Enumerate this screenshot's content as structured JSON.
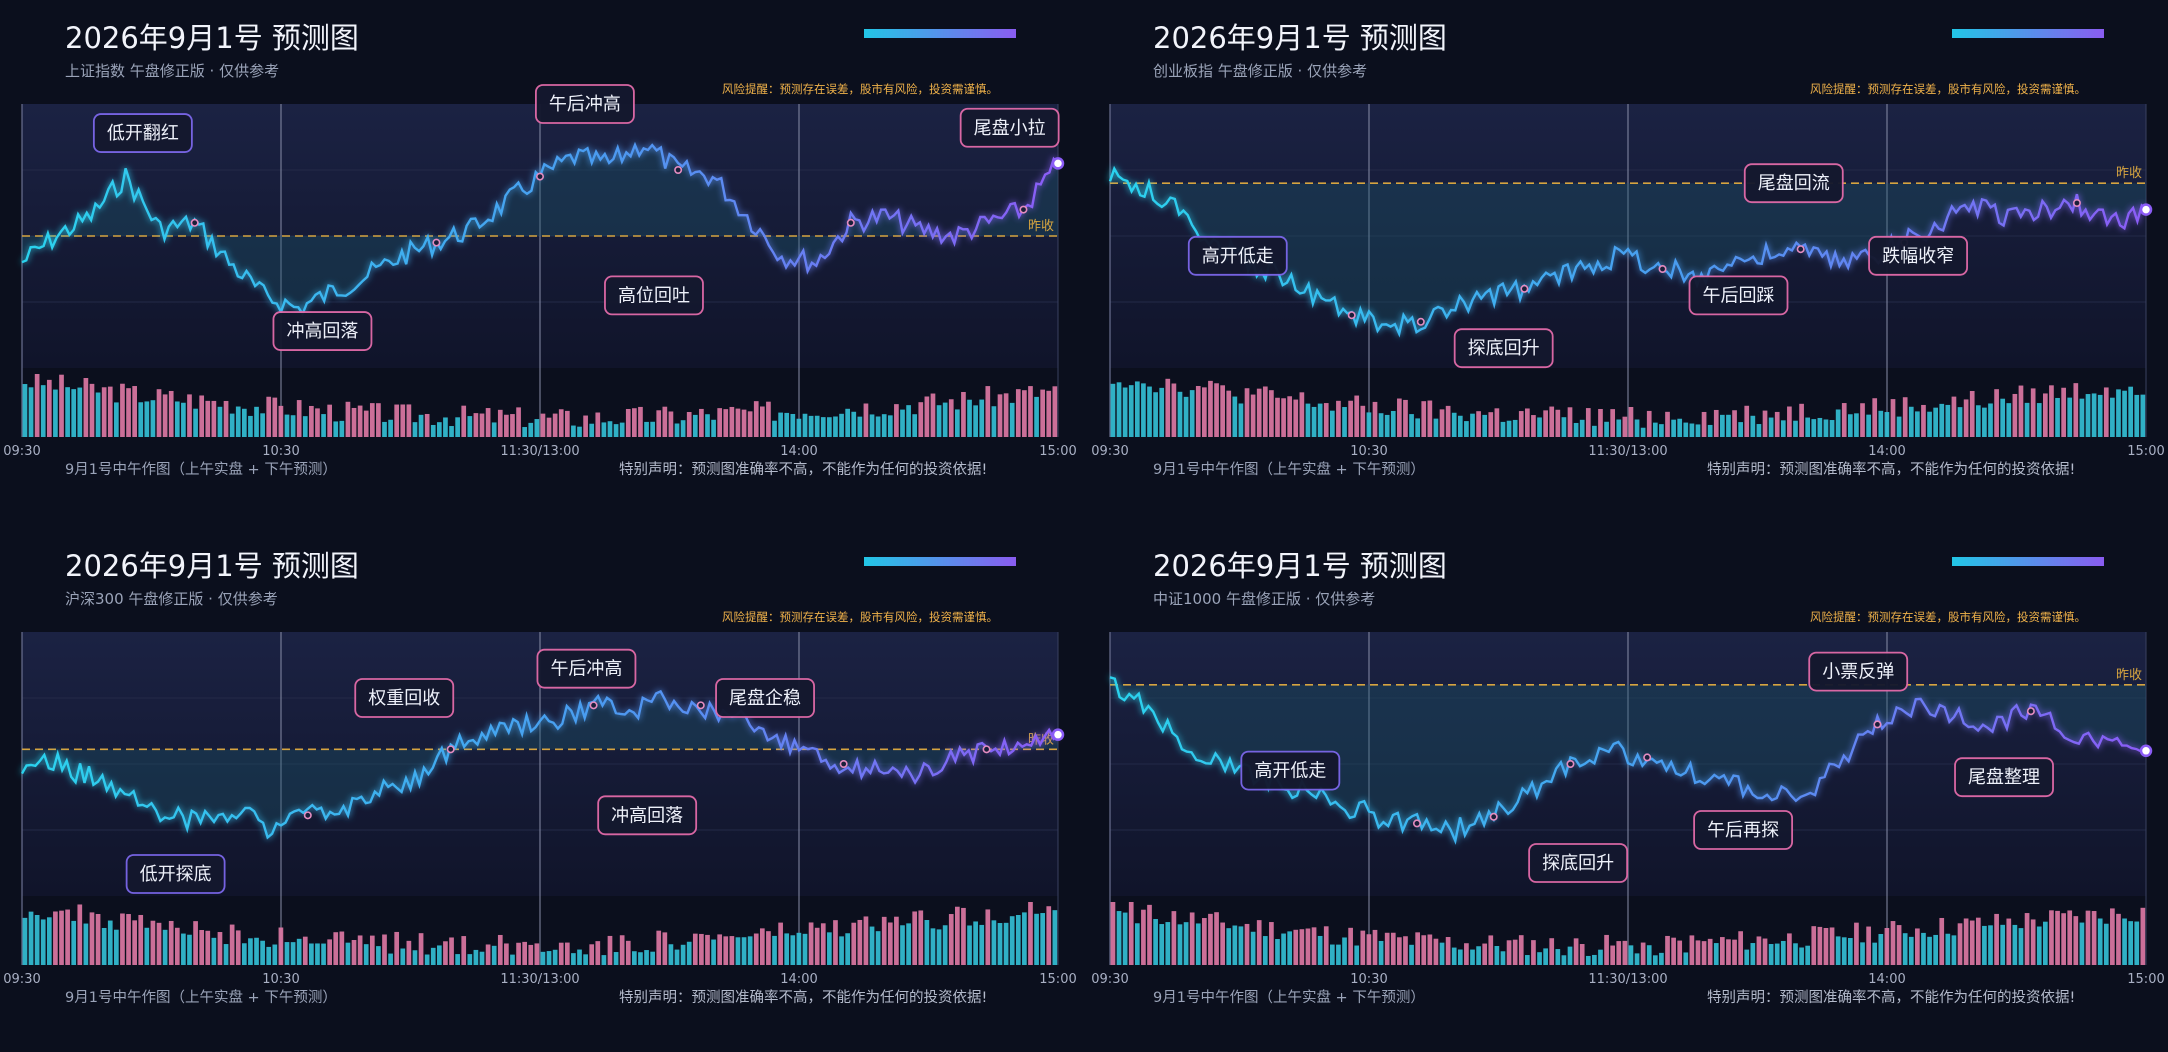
{
  "chart_data": [
    {
      "type": "line",
      "title": "2026年9月1号 预测图",
      "subtitle": "上证指数 午盘修正版 · 仅供参考",
      "risk_note": "风险提醒：预测存在误差，股市有风险，投资需谨慎。",
      "footer_left": "9月1号中午作图（上午实盘 + 下午预测）",
      "footer_right": "特别声明：预测图准确率不高，不能作为任何的投资依据!",
      "ref_label": "昨收",
      "ylim": [
        -1.0,
        1.0
      ],
      "ref_value": 0.0,
      "x_ticks": [
        "09:30",
        "10:30",
        "11:30/13:00",
        "14:00",
        "15:00"
      ],
      "series": [
        {
          "values": [
            -0.2,
            0.0,
            0.15,
            0.45,
            0.05,
            0.1,
            -0.2,
            -0.45,
            -0.55,
            -0.42,
            -0.3,
            -0.15,
            -0.05,
            0.05,
            0.25,
            0.45,
            0.6,
            0.55,
            0.7,
            0.5,
            0.45,
            0.15,
            -0.15,
            -0.2,
            0.1,
            0.15,
            0.05,
            0.0,
            0.1,
            0.2,
            0.55
          ],
          "markers": [
            5,
            12,
            15,
            19,
            24,
            29
          ]
        }
      ],
      "volume": [
        0.9,
        0.85,
        0.8,
        0.75,
        0.7,
        0.65,
        0.62,
        0.58,
        0.55,
        0.5,
        0.48,
        0.45,
        0.42,
        0.4,
        0.38,
        0.36,
        0.35,
        0.34,
        0.33,
        0.32,
        0.31,
        0.3,
        0.3,
        0.31,
        0.32,
        0.33,
        0.34,
        0.36,
        0.38,
        0.4,
        0.42,
        0.44,
        0.46,
        0.48,
        0.5,
        0.52,
        0.55,
        0.58,
        0.62,
        0.66,
        0.7,
        0.74
      ],
      "annotations": [
        {
          "text": "低开翻红",
          "index": 3.5,
          "value": 0.78,
          "side": "above"
        },
        {
          "text": "冲高回落",
          "index": 8.7,
          "value": -0.72,
          "side": "below"
        },
        {
          "text": "午后冲高",
          "index": 16.3,
          "value": 1.0,
          "side": "above"
        },
        {
          "text": "高位回吐",
          "index": 18.3,
          "value": -0.45,
          "side": "below"
        },
        {
          "text": "尾盘小拉",
          "index": 28.6,
          "value": 0.82,
          "side": "above"
        }
      ],
      "colors": {
        "line_start": "#2bd3ee",
        "line_end": "#8b5cf6",
        "ref": "#d6a440",
        "vol_up": "#e07aa6",
        "vol_down": "#34c2d8"
      }
    },
    {
      "type": "line",
      "title": "2026年9月1号 预测图",
      "subtitle": "创业板指 午盘修正版 · 仅供参考",
      "risk_note": "风险提醒：预测存在误差，股市有风险，投资需谨慎。",
      "footer_left": "9月1号中午作图（上午实盘 + 下午预测）",
      "footer_right": "特别声明：预测图准确率不高，不能作为任何的投资依据!",
      "ref_label": "昨收",
      "ylim": [
        -1.4,
        0.6
      ],
      "ref_value": 0.0,
      "x_ticks": [
        "09:30",
        "10:30",
        "11:30/13:00",
        "14:00",
        "15:00"
      ],
      "series": [
        {
          "values": [
            0.05,
            -0.05,
            -0.2,
            -0.45,
            -0.6,
            -0.7,
            -0.85,
            -1.0,
            -1.1,
            -1.05,
            -0.95,
            -0.85,
            -0.8,
            -0.7,
            -0.6,
            -0.55,
            -0.65,
            -0.7,
            -0.6,
            -0.55,
            -0.5,
            -0.6,
            -0.55,
            -0.45,
            -0.3,
            -0.15,
            -0.25,
            -0.2,
            -0.15,
            -0.3,
            -0.2
          ],
          "markers": [
            7,
            9,
            12,
            16,
            20,
            23,
            28
          ]
        }
      ],
      "volume": [
        0.95,
        0.9,
        0.85,
        0.8,
        0.75,
        0.7,
        0.65,
        0.6,
        0.55,
        0.5,
        0.48,
        0.46,
        0.42,
        0.4,
        0.38,
        0.36,
        0.35,
        0.34,
        0.33,
        0.32,
        0.31,
        0.32,
        0.33,
        0.34,
        0.35,
        0.36,
        0.38,
        0.4,
        0.42,
        0.44,
        0.46,
        0.48,
        0.5,
        0.53,
        0.56,
        0.6,
        0.64,
        0.68,
        0.72,
        0.76,
        0.8,
        0.84
      ],
      "annotations": [
        {
          "text": "高开低走",
          "index": 3.7,
          "value": -0.55,
          "side": "below"
        },
        {
          "text": "探底回升",
          "index": 11.4,
          "value": -1.25,
          "side": "below"
        },
        {
          "text": "午后回踩",
          "index": 18.2,
          "value": -0.85,
          "side": "below"
        },
        {
          "text": "尾盘回流",
          "index": 19.8,
          "value": 0.0,
          "side": "above"
        },
        {
          "text": "跌幅收窄",
          "index": 23.4,
          "value": -0.55,
          "side": "below"
        }
      ],
      "colors": {
        "line_start": "#2bd3ee",
        "line_end": "#8b5cf6",
        "ref": "#d6a440",
        "vol_up": "#e07aa6",
        "vol_down": "#34c2d8"
      }
    },
    {
      "type": "line",
      "title": "2026年9月1号 预测图",
      "subtitle": "沪深300 午盘修正版 · 仅供参考",
      "risk_note": "风险提醒：预测存在误差，股市有风险，投资需谨慎。",
      "footer_left": "9月1号中午作图（上午实盘 + 下午预测）",
      "footer_right": "特别声明：预测图准确率不高，不能作为任何的投资依据!",
      "ref_label": "昨收",
      "ylim": [
        -1.0,
        0.8
      ],
      "ref_value": 0.0,
      "x_ticks": [
        "09:30",
        "10:30",
        "11:30/13:00",
        "14:00",
        "15:00"
      ],
      "series": [
        {
          "values": [
            -0.1,
            -0.1,
            -0.2,
            -0.3,
            -0.45,
            -0.5,
            -0.4,
            -0.55,
            -0.45,
            -0.4,
            -0.3,
            -0.2,
            0.0,
            0.1,
            0.15,
            0.2,
            0.3,
            0.25,
            0.35,
            0.3,
            0.2,
            0.1,
            0.0,
            -0.1,
            -0.15,
            -0.2,
            -0.05,
            0.0,
            0.05,
            0.1
          ],
          "markers": [
            8,
            12,
            16,
            19,
            23,
            27
          ]
        }
      ],
      "volume": [
        0.9,
        0.85,
        0.8,
        0.74,
        0.68,
        0.62,
        0.58,
        0.54,
        0.5,
        0.46,
        0.44,
        0.42,
        0.4,
        0.38,
        0.36,
        0.35,
        0.34,
        0.33,
        0.32,
        0.31,
        0.3,
        0.31,
        0.32,
        0.33,
        0.35,
        0.37,
        0.39,
        0.41,
        0.44,
        0.47,
        0.5,
        0.53,
        0.56,
        0.6,
        0.64,
        0.68,
        0.72,
        0.76,
        0.8,
        0.84,
        0.88,
        0.92
      ],
      "annotations": [
        {
          "text": "低开探底",
          "index": 4.3,
          "value": -0.85,
          "side": "below"
        },
        {
          "text": "权重回收",
          "index": 10.7,
          "value": 0.35,
          "side": "above"
        },
        {
          "text": "午后冲高",
          "index": 15.8,
          "value": 0.55,
          "side": "above"
        },
        {
          "text": "冲高回落",
          "index": 17.5,
          "value": -0.45,
          "side": "below"
        },
        {
          "text": "尾盘企稳",
          "index": 20.8,
          "value": 0.35,
          "side": "above"
        }
      ],
      "colors": {
        "line_start": "#2bd3ee",
        "line_end": "#8b5cf6",
        "ref": "#d6a440",
        "vol_up": "#e07aa6",
        "vol_down": "#34c2d8"
      }
    },
    {
      "type": "line",
      "title": "2026年9月1号 预测图",
      "subtitle": "中证1000 午盘修正版 · 仅供参考",
      "risk_note": "风险提醒：预测存在误差，股市有风险，投资需谨慎。",
      "footer_left": "9月1号中午作图（上午实盘 + 下午预测）",
      "footer_right": "特别声明：预测图准确率不高，不能作为任何的投资依据!",
      "ref_label": "昨收",
      "ylim": [
        -1.6,
        0.4
      ],
      "ref_value": 0.0,
      "x_ticks": [
        "09:30",
        "10:30",
        "11:30/13:00",
        "14:00",
        "15:00"
      ],
      "series": [
        {
          "values": [
            0.0,
            -0.2,
            -0.45,
            -0.6,
            -0.7,
            -0.8,
            -0.9,
            -1.0,
            -1.05,
            -1.1,
            -1.0,
            -0.8,
            -0.6,
            -0.5,
            -0.55,
            -0.65,
            -0.75,
            -0.8,
            -0.85,
            -0.6,
            -0.3,
            -0.15,
            -0.25,
            -0.3,
            -0.2,
            -0.35,
            -0.45,
            -0.5
          ],
          "markers": [
            8,
            10,
            12,
            14,
            20,
            24
          ]
        }
      ],
      "volume": [
        0.88,
        0.83,
        0.78,
        0.73,
        0.68,
        0.63,
        0.59,
        0.55,
        0.51,
        0.47,
        0.44,
        0.41,
        0.38,
        0.36,
        0.34,
        0.33,
        0.32,
        0.31,
        0.3,
        0.3,
        0.31,
        0.32,
        0.33,
        0.34,
        0.36,
        0.38,
        0.4,
        0.42,
        0.45,
        0.48,
        0.51,
        0.54,
        0.57,
        0.6,
        0.63,
        0.66,
        0.69,
        0.72,
        0.75,
        0.78,
        0.81,
        0.84
      ],
      "annotations": [
        {
          "text": "高开低走",
          "index": 4.7,
          "value": -0.65,
          "side": "below"
        },
        {
          "text": "探底回升",
          "index": 12.2,
          "value": -1.35,
          "side": "below"
        },
        {
          "text": "午后再探",
          "index": 16.5,
          "value": -1.1,
          "side": "below"
        },
        {
          "text": "小票反弹",
          "index": 19.5,
          "value": 0.1,
          "side": "above"
        },
        {
          "text": "尾盘整理",
          "index": 23.3,
          "value": -0.7,
          "side": "below"
        }
      ],
      "colors": {
        "line_start": "#2bd3ee",
        "line_end": "#8b5cf6",
        "ref": "#d6a440",
        "vol_up": "#e07aa6",
        "vol_down": "#34c2d8"
      }
    }
  ]
}
